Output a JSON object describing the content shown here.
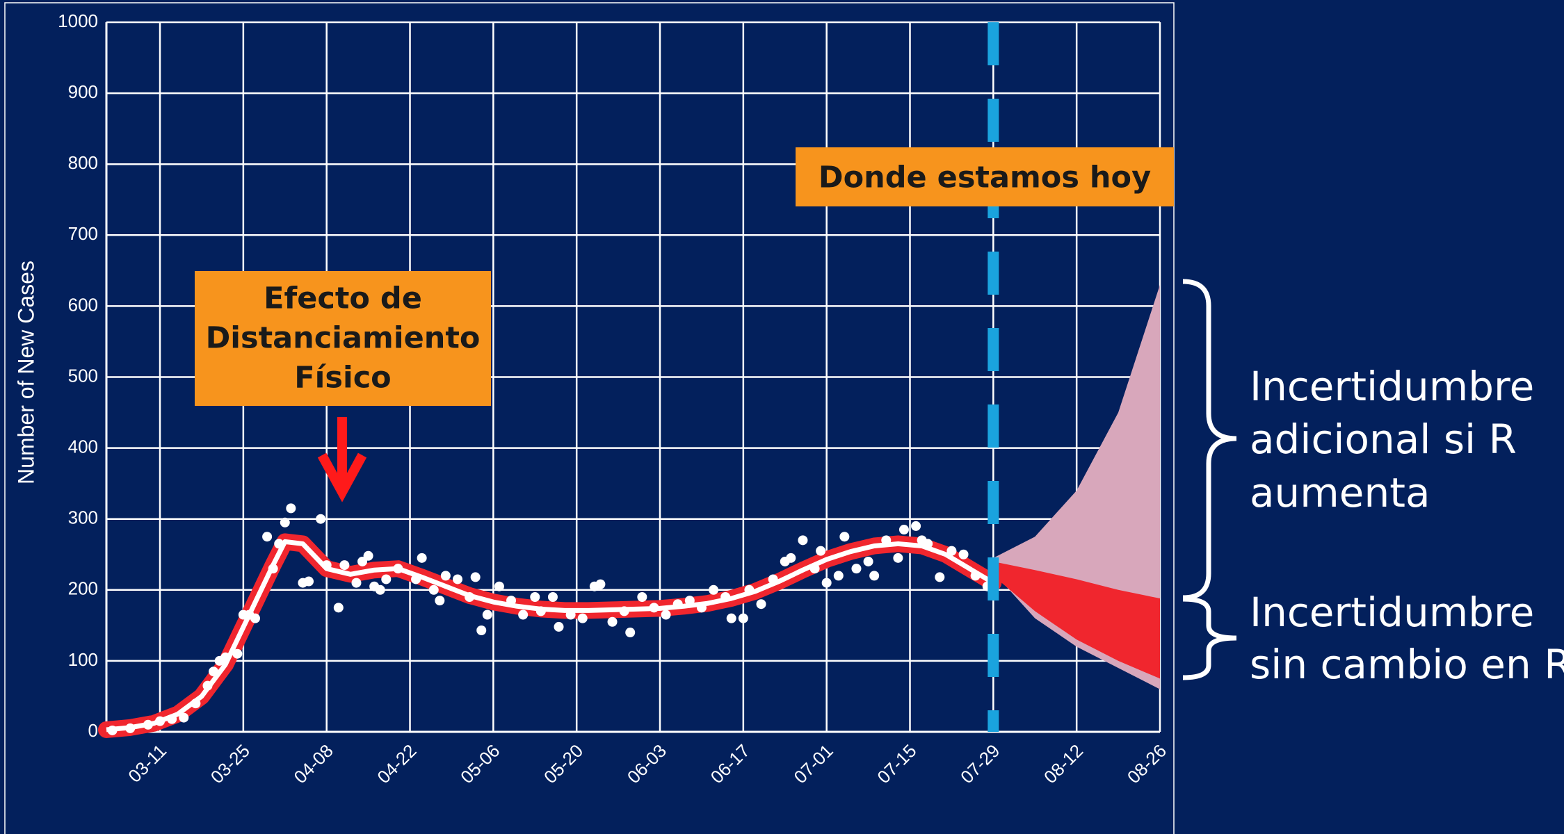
{
  "chart_data": {
    "type": "line",
    "y_label": "Number of New Cases",
    "xlim": [
      "03-02",
      "08-26"
    ],
    "xticks": [
      "03-11",
      "03-25",
      "04-08",
      "04-22",
      "05-06",
      "05-20",
      "06-03",
      "06-17",
      "07-01",
      "07-15",
      "07-29",
      "08-12",
      "08-26"
    ],
    "ylim": [
      0,
      1000
    ],
    "yticks": [
      0,
      100,
      200,
      300,
      400,
      500,
      600,
      700,
      800,
      900,
      1000
    ],
    "grid": true,
    "observed": {
      "type": "scatter",
      "color": "#ffffff",
      "x": [
        "03-03",
        "03-06",
        "03-09",
        "03-11",
        "03-13",
        "03-15",
        "03-17",
        "03-19",
        "03-20",
        "03-21",
        "03-22",
        "03-24",
        "03-25",
        "03-26",
        "03-27",
        "03-29",
        "03-30",
        "03-31",
        "04-01",
        "04-02",
        "04-04",
        "04-05",
        "04-07",
        "04-08",
        "04-10",
        "04-11",
        "04-13",
        "04-14",
        "04-15",
        "04-16",
        "04-17",
        "04-18",
        "04-20",
        "04-23",
        "04-24",
        "04-26",
        "04-27",
        "04-28",
        "04-30",
        "05-02",
        "05-03",
        "05-04",
        "05-05",
        "05-07",
        "05-09",
        "05-11",
        "05-13",
        "05-14",
        "05-16",
        "05-17",
        "05-19",
        "05-21",
        "05-23",
        "05-24",
        "05-26",
        "05-28",
        "05-29",
        "05-31",
        "06-02",
        "06-04",
        "06-06",
        "06-08",
        "06-10",
        "06-12",
        "06-14",
        "06-15",
        "06-17",
        "06-18",
        "06-20",
        "06-22",
        "06-24",
        "06-25",
        "06-27",
        "06-29",
        "06-30",
        "07-01",
        "07-03",
        "07-04",
        "07-06",
        "07-08",
        "07-09",
        "07-11",
        "07-13",
        "07-14",
        "07-16",
        "07-17",
        "07-18",
        "07-20",
        "07-22",
        "07-24",
        "07-26",
        "07-28"
      ],
      "values": [
        2,
        5,
        10,
        15,
        18,
        20,
        40,
        65,
        85,
        100,
        105,
        110,
        165,
        165,
        160,
        275,
        230,
        265,
        295,
        315,
        210,
        212,
        300,
        235,
        175,
        235,
        210,
        240,
        248,
        205,
        200,
        215,
        230,
        215,
        245,
        200,
        185,
        220,
        215,
        190,
        218,
        143,
        165,
        205,
        185,
        165,
        190,
        170,
        190,
        148,
        165,
        160,
        205,
        208,
        155,
        170,
        140,
        190,
        175,
        165,
        180,
        185,
        175,
        200,
        190,
        160,
        160,
        200,
        180,
        215,
        240,
        245,
        270,
        230,
        255,
        210,
        220,
        275,
        230,
        240,
        220,
        270,
        245,
        285,
        290,
        270,
        265,
        218,
        255,
        250,
        220,
        205
      ]
    },
    "fit": {
      "type": "line",
      "color": "#ffffff",
      "band_color": "#f0262e",
      "x": [
        "03-02",
        "03-06",
        "03-10",
        "03-14",
        "03-18",
        "03-22",
        "03-26",
        "03-30",
        "04-01",
        "04-04",
        "04-08",
        "04-12",
        "04-16",
        "04-20",
        "04-24",
        "04-28",
        "05-02",
        "05-06",
        "05-10",
        "05-14",
        "05-18",
        "05-22",
        "05-26",
        "05-30",
        "06-03",
        "06-07",
        "06-11",
        "06-15",
        "06-19",
        "06-23",
        "06-27",
        "07-01",
        "07-05",
        "07-09",
        "07-13",
        "07-17",
        "07-21",
        "07-25",
        "07-29"
      ],
      "values": [
        3,
        6,
        12,
        25,
        50,
        95,
        165,
        235,
        268,
        265,
        230,
        222,
        228,
        230,
        218,
        205,
        192,
        183,
        177,
        173,
        171,
        171,
        172,
        173,
        174,
        177,
        181,
        188,
        198,
        212,
        228,
        243,
        254,
        262,
        265,
        262,
        250,
        230,
        210
      ]
    },
    "forecast": {
      "x": [
        "07-29",
        "08-05",
        "08-12",
        "08-19",
        "08-26"
      ],
      "r_increase_color": "#d8a7bb",
      "r_increase_upper": [
        245,
        275,
        340,
        450,
        630
      ],
      "r_increase_lower": [
        225,
        160,
        120,
        90,
        60
      ],
      "no_change_color": "#f0262e",
      "no_change_upper": [
        240,
        228,
        215,
        200,
        188
      ],
      "no_change_lower": [
        220,
        170,
        130,
        100,
        75
      ]
    },
    "today": {
      "x": "07-29",
      "color": "#1aa3de"
    },
    "annotations": [
      {
        "lines": [
          "Efecto de",
          "Distanciamiento",
          "Físico"
        ],
        "color": "#f7941d",
        "arrow_color": "#ff1a1a"
      },
      {
        "lines": [
          "Donde estamos hoy"
        ],
        "color": "#f7941d"
      }
    ],
    "notes": [
      {
        "lines": [
          "Incertidumbre",
          "adicional si R",
          "aumenta"
        ]
      },
      {
        "lines": [
          "Incertidumbre",
          "sin cambio en R"
        ]
      }
    ]
  }
}
